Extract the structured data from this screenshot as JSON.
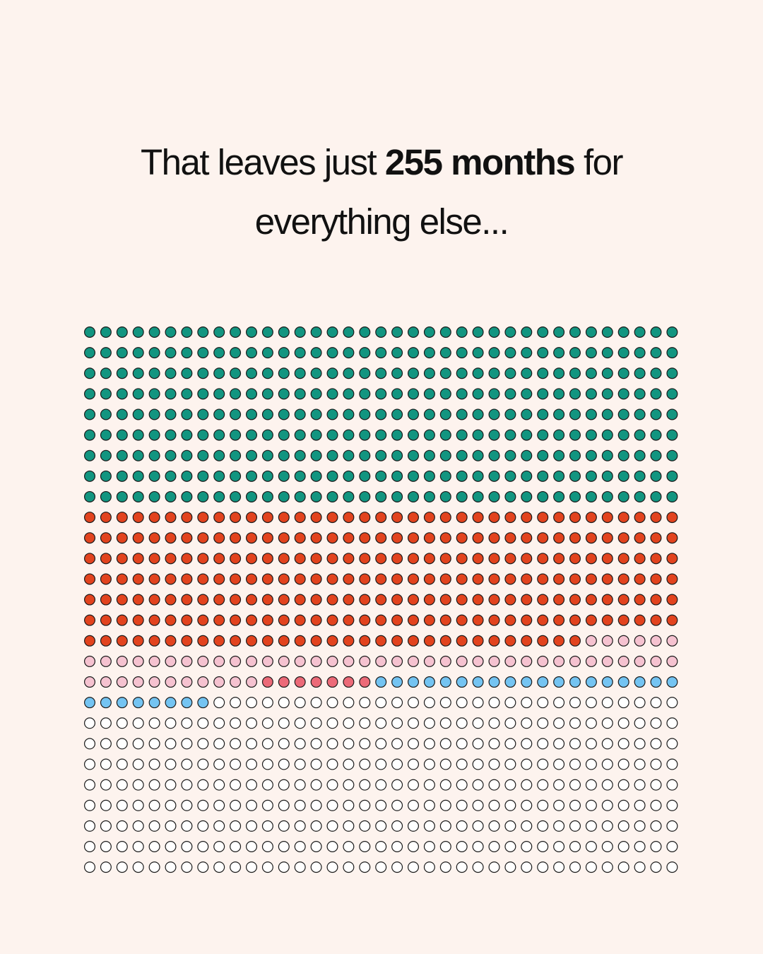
{
  "headline": {
    "before": "That leaves just ",
    "highlight": "255 months",
    "after": " for",
    "line2": "everything else..."
  },
  "chart_data": {
    "type": "waffle",
    "columns": 37,
    "rows": 27,
    "stroke_color": "#1a1a1a",
    "segments": [
      {
        "count": 333,
        "color": "#129580"
      },
      {
        "count": 253,
        "color": "#e2431e"
      },
      {
        "count": 54,
        "color": "#f5c2d0"
      },
      {
        "count": 7,
        "color": "#ec6a78"
      },
      {
        "count": 27,
        "color": "#74c4f2"
      },
      {
        "count": 325,
        "color": "#ffffff"
      }
    ]
  }
}
